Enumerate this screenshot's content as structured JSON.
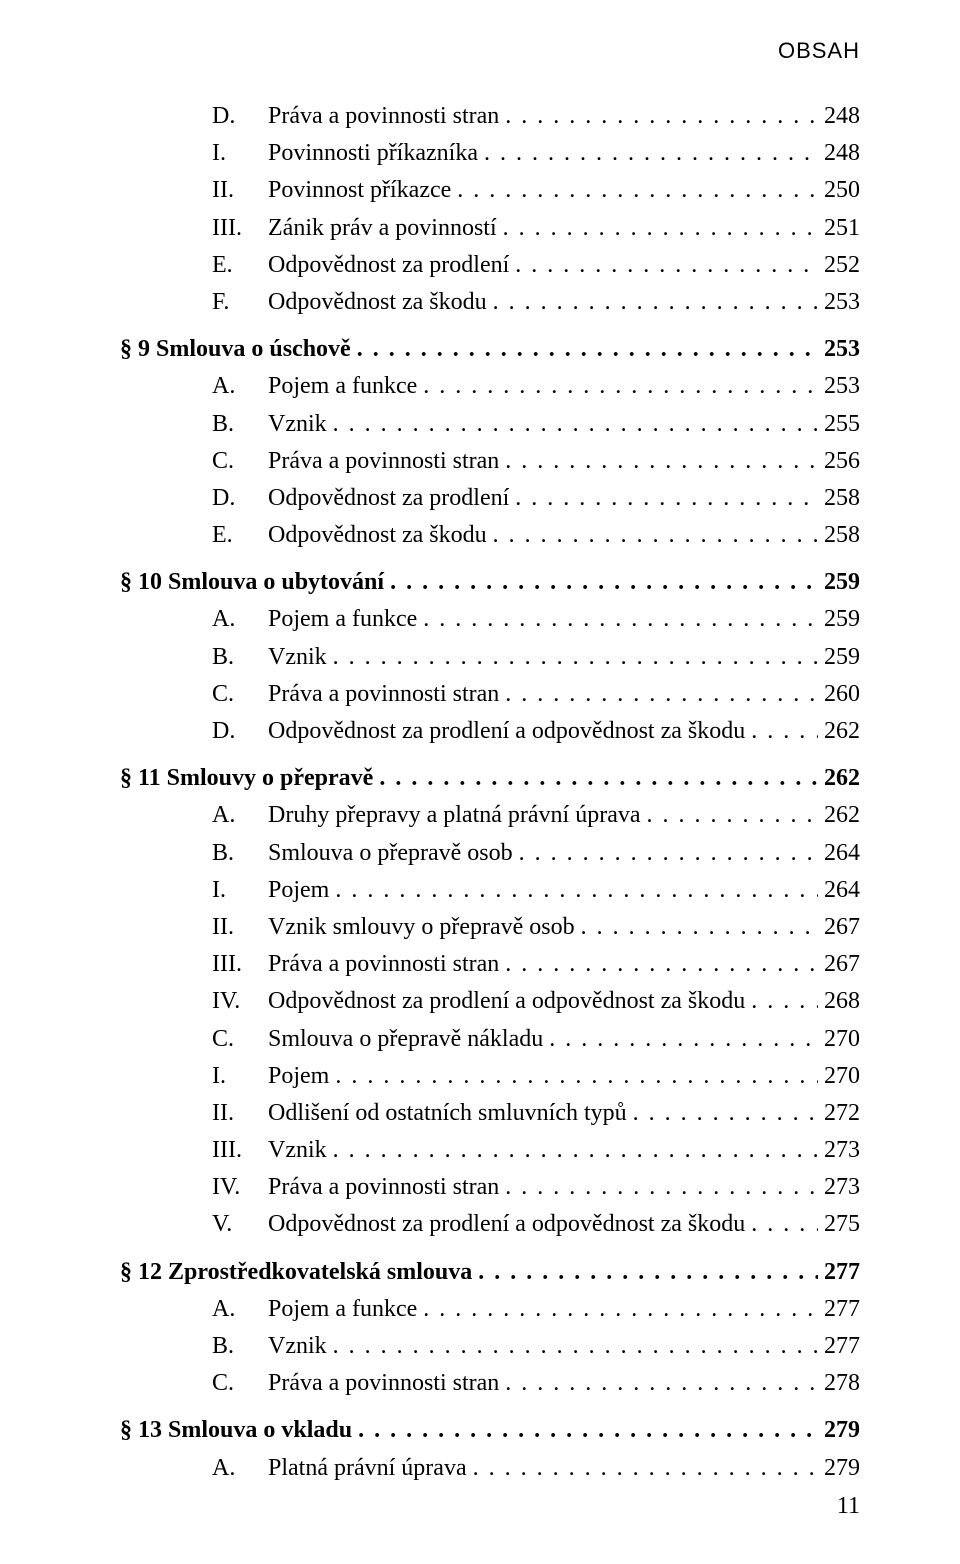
{
  "header": "OBSAH",
  "pageNumber": "11",
  "entries": [
    {
      "level": "2",
      "marker": "D.",
      "text": "Práva a povinnosti stran",
      "page": "248",
      "gap": false
    },
    {
      "level": "3",
      "marker": "I.",
      "text": "Povinnosti příkazníka",
      "page": "248",
      "gap": false
    },
    {
      "level": "3",
      "marker": "II.",
      "text": "Povinnost příkazce",
      "page": "250",
      "gap": false
    },
    {
      "level": "3",
      "marker": "III.",
      "text": "Zánik práv a povinností",
      "page": "251",
      "gap": false
    },
    {
      "level": "2",
      "marker": "E.",
      "text": "Odpovědnost za prodlení",
      "page": "252",
      "gap": false
    },
    {
      "level": "2",
      "marker": "F.",
      "text": "Odpovědnost za škodu",
      "page": "253",
      "gap": false
    },
    {
      "level": "section",
      "marker": "§ 9",
      "text": "Smlouva o úschově",
      "page": "253",
      "gap": true
    },
    {
      "level": "2",
      "marker": "A.",
      "text": "Pojem a funkce",
      "page": "253",
      "gap": false
    },
    {
      "level": "2",
      "marker": "B.",
      "text": "Vznik",
      "page": "255",
      "gap": false
    },
    {
      "level": "2",
      "marker": "C.",
      "text": "Práva a povinnosti stran",
      "page": "256",
      "gap": false
    },
    {
      "level": "2",
      "marker": "D.",
      "text": "Odpovědnost za prodlení",
      "page": "258",
      "gap": false
    },
    {
      "level": "2",
      "marker": "E.",
      "text": "Odpovědnost za škodu",
      "page": "258",
      "gap": false
    },
    {
      "level": "section",
      "marker": "§ 10",
      "text": "Smlouva o ubytování",
      "page": "259",
      "gap": true
    },
    {
      "level": "2",
      "marker": "A.",
      "text": "Pojem a funkce",
      "page": "259",
      "gap": false
    },
    {
      "level": "2",
      "marker": "B.",
      "text": "Vznik",
      "page": "259",
      "gap": false
    },
    {
      "level": "2",
      "marker": "C.",
      "text": "Práva a povinnosti stran",
      "page": "260",
      "gap": false
    },
    {
      "level": "2",
      "marker": "D.",
      "text": "Odpovědnost za prodlení a odpovědnost za škodu",
      "page": "262",
      "gap": false
    },
    {
      "level": "section",
      "marker": "§ 11",
      "text": "Smlouvy o přepravě",
      "page": "262",
      "gap": true
    },
    {
      "level": "2",
      "marker": "A.",
      "text": "Druhy přepravy a platná právní úprava",
      "page": "262",
      "gap": false
    },
    {
      "level": "2",
      "marker": "B.",
      "text": "Smlouva o přepravě osob",
      "page": "264",
      "gap": false
    },
    {
      "level": "3",
      "marker": "I.",
      "text": "Pojem",
      "page": "264",
      "gap": false
    },
    {
      "level": "3",
      "marker": "II.",
      "text": "Vznik smlouvy o přepravě osob",
      "page": "267",
      "gap": false
    },
    {
      "level": "3",
      "marker": "III.",
      "text": "Práva a povinnosti stran",
      "page": "267",
      "gap": false
    },
    {
      "level": "3",
      "marker": "IV.",
      "text": "Odpovědnost za prodlení a odpovědnost za škodu",
      "page": "268",
      "gap": false
    },
    {
      "level": "2",
      "marker": "C.",
      "text": "Smlouva o přepravě nákladu",
      "page": "270",
      "gap": false
    },
    {
      "level": "3",
      "marker": "I.",
      "text": "Pojem",
      "page": "270",
      "gap": false
    },
    {
      "level": "3",
      "marker": "II.",
      "text": "Odlišení od ostatních smluvních typů",
      "page": "272",
      "gap": false
    },
    {
      "level": "3",
      "marker": "III.",
      "text": "Vznik",
      "page": "273",
      "gap": false
    },
    {
      "level": "3",
      "marker": "IV.",
      "text": "Práva a povinnosti stran",
      "page": "273",
      "gap": false
    },
    {
      "level": "3",
      "marker": "V.",
      "text": "Odpovědnost za prodlení a odpovědnost za škodu",
      "page": "275",
      "gap": false
    },
    {
      "level": "section",
      "marker": "§ 12",
      "text": "Zprostředkovatelská smlouva",
      "page": "277",
      "gap": true
    },
    {
      "level": "2",
      "marker": "A.",
      "text": "Pojem a funkce",
      "page": "277",
      "gap": false
    },
    {
      "level": "2",
      "marker": "B.",
      "text": "Vznik",
      "page": "277",
      "gap": false
    },
    {
      "level": "2",
      "marker": "C.",
      "text": "Práva a povinnosti stran",
      "page": "278",
      "gap": false
    },
    {
      "level": "section",
      "marker": "§ 13",
      "text": "Smlouva o vkladu",
      "page": "279",
      "gap": true
    },
    {
      "level": "2",
      "marker": "A.",
      "text": "Platná právní úprava",
      "page": "279",
      "gap": false
    }
  ]
}
